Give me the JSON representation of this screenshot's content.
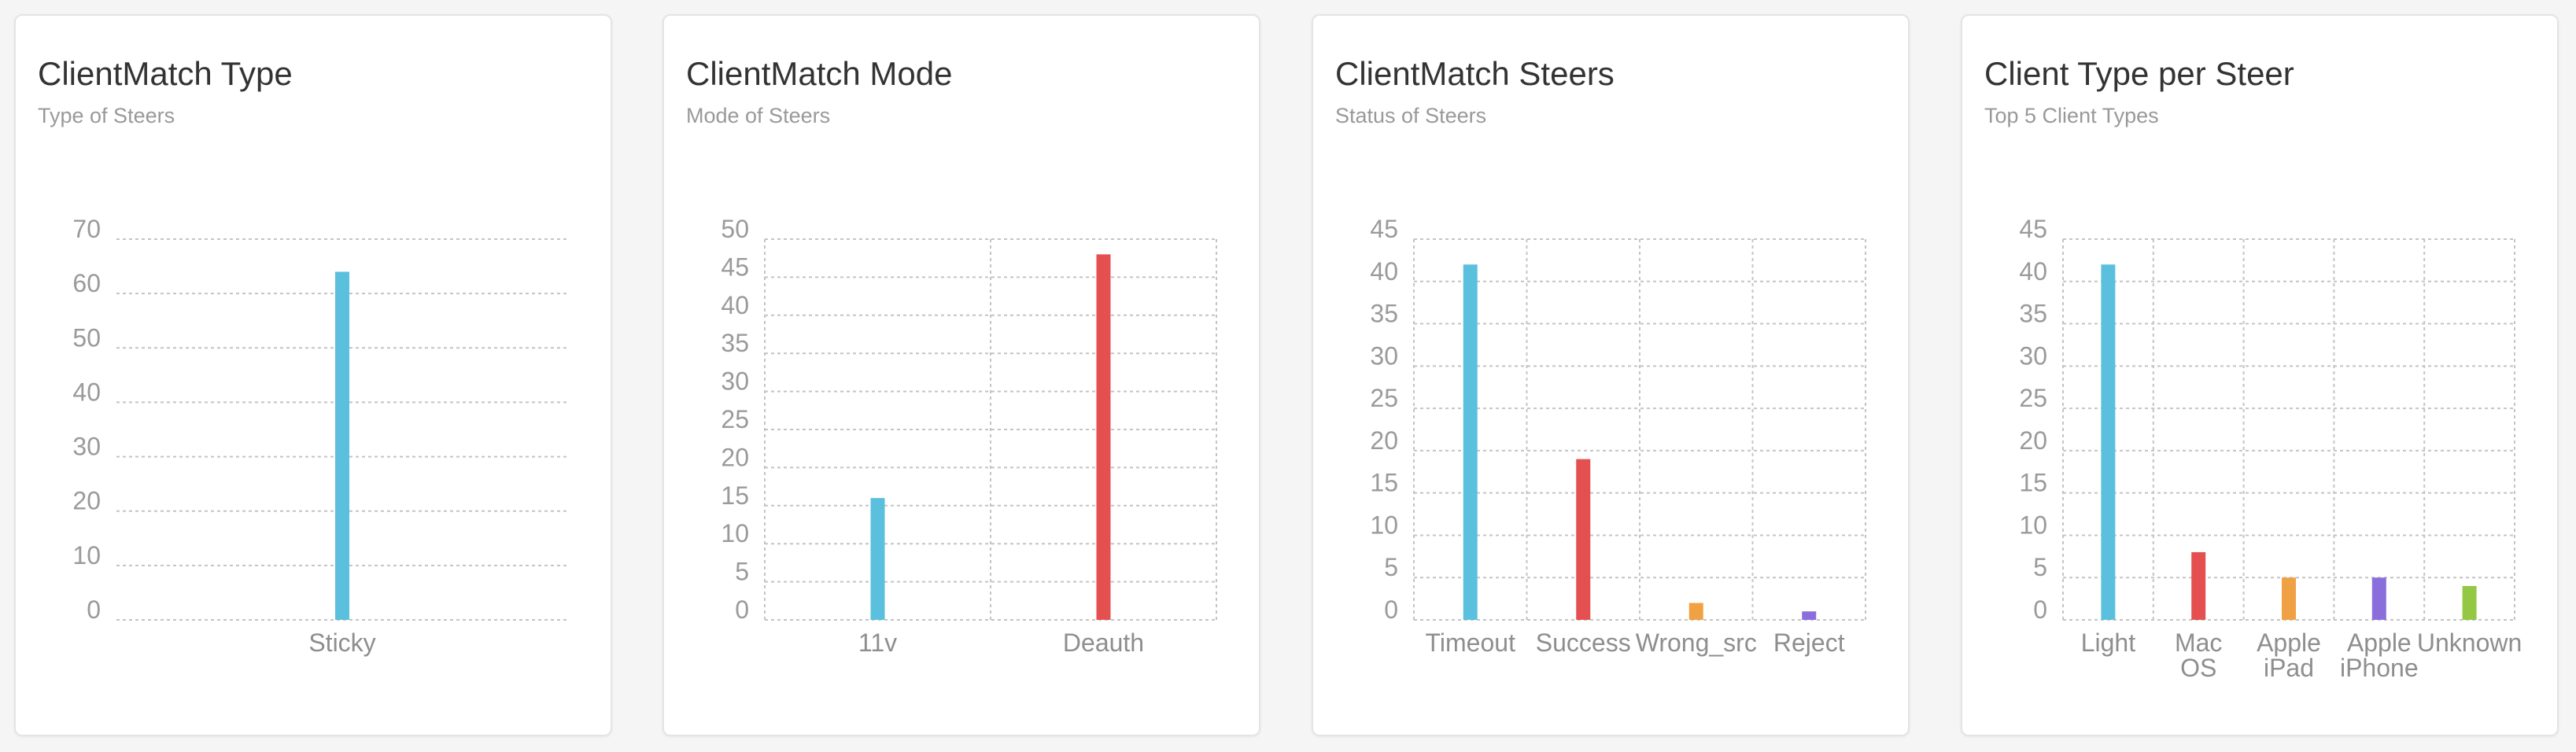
{
  "chart_data": [
    {
      "type": "bar",
      "title": "ClientMatch Type",
      "subtitle": "Type of Steers",
      "categories": [
        "Sticky"
      ],
      "values": [
        64
      ],
      "colors": [
        "#5bc0de"
      ],
      "ylim": [
        0,
        70
      ],
      "yticks": [
        0,
        10,
        20,
        30,
        40,
        50,
        60,
        70
      ],
      "grid": true,
      "vertical_grid": false
    },
    {
      "type": "bar",
      "title": "ClientMatch Mode",
      "subtitle": "Mode of Steers",
      "categories": [
        "11v",
        "Deauth"
      ],
      "values": [
        16,
        48
      ],
      "colors": [
        "#5bc0de",
        "#e45050"
      ],
      "ylim": [
        0,
        50
      ],
      "yticks": [
        0,
        5,
        10,
        15,
        20,
        25,
        30,
        35,
        40,
        45,
        50
      ],
      "grid": true,
      "vertical_grid": true
    },
    {
      "type": "bar",
      "title": "ClientMatch Steers",
      "subtitle": "Status of Steers",
      "categories": [
        "Timeout",
        "Success",
        "Wrong_src",
        "Reject"
      ],
      "values": [
        42,
        19,
        2,
        1
      ],
      "colors": [
        "#5bc0de",
        "#e45050",
        "#f0a143",
        "#8a6fdc"
      ],
      "ylim": [
        0,
        45
      ],
      "yticks": [
        0,
        5,
        10,
        15,
        20,
        25,
        30,
        35,
        40,
        45
      ],
      "grid": true,
      "vertical_grid": true
    },
    {
      "type": "bar",
      "title": "Client Type per Steer",
      "subtitle": "Top 5 Client Types",
      "categories": [
        "Light",
        "Mac OS",
        "Apple iPad",
        "Apple iPhone",
        "Unknown"
      ],
      "values": [
        42,
        8,
        5,
        5,
        4
      ],
      "colors": [
        "#5bc0de",
        "#e45050",
        "#f0a143",
        "#8a6fdc",
        "#94c844"
      ],
      "ylim": [
        0,
        45
      ],
      "yticks": [
        0,
        5,
        10,
        15,
        20,
        25,
        30,
        35,
        40,
        45
      ],
      "grid": true,
      "vertical_grid": true
    }
  ]
}
